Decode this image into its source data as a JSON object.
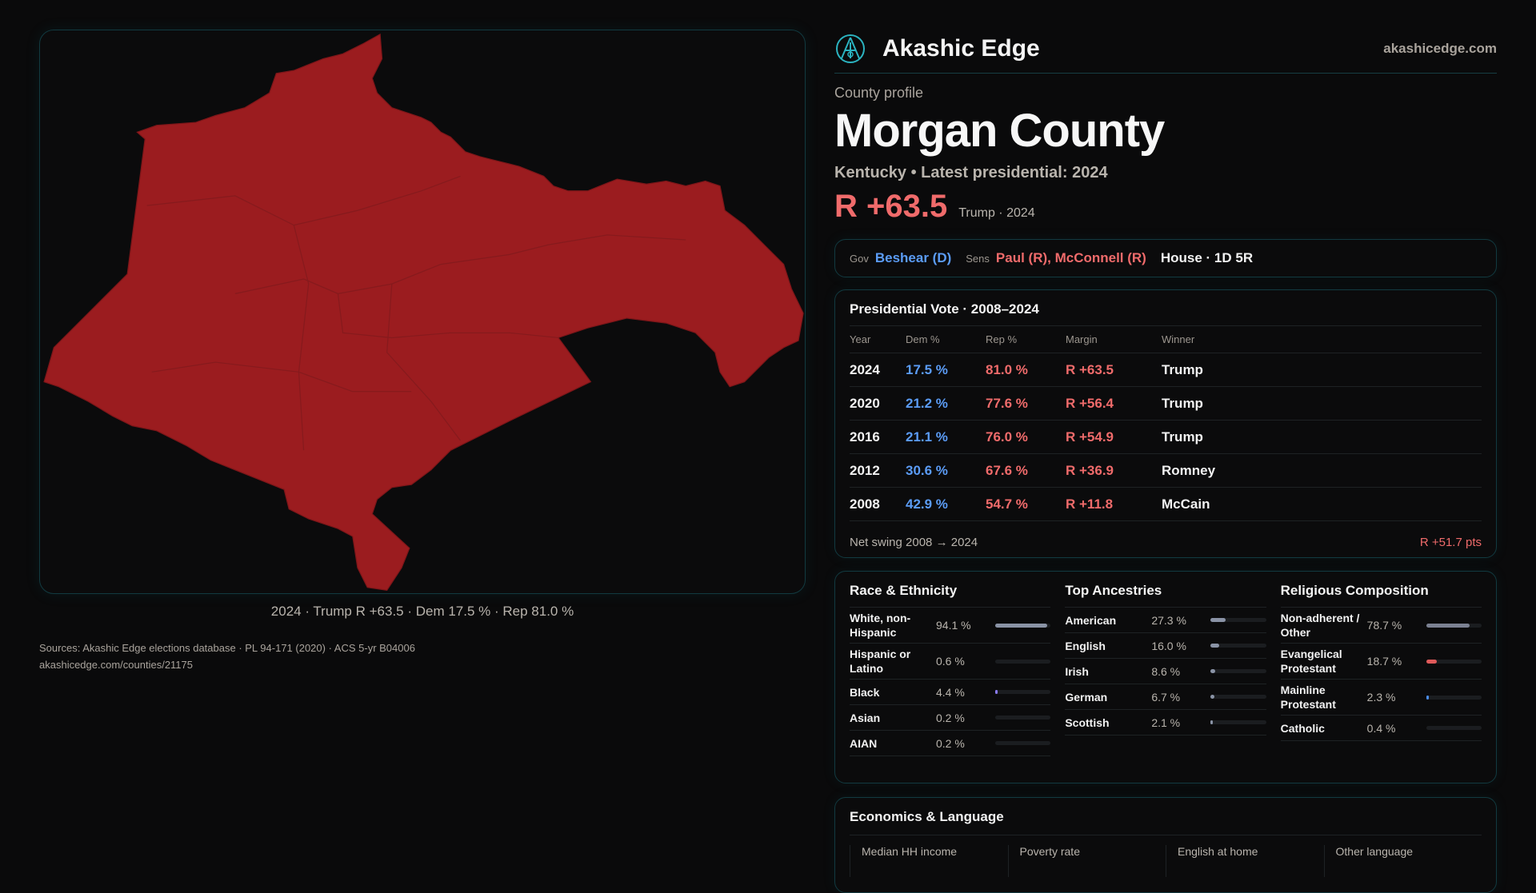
{
  "brand": {
    "name": "Akashic Edge",
    "site": "akashicedge.com"
  },
  "profile": {
    "kicker": "County profile",
    "title": "Morgan County",
    "subtitle": "Kentucky • Latest presidential: 2024",
    "margin": "R +63.5",
    "margin_sub": "Trump · 2024"
  },
  "officials": {
    "gov_label": "Gov",
    "gov": "Beshear (D)",
    "sens_label": "Sens",
    "sens": "Paul (R), McConnell (R)",
    "house": "House · 1D 5R"
  },
  "map": {
    "caption": "2024 · Trump R +63.5 · Dem 17.5 % · Rep 81.0 %",
    "fill": "#9b1c1f"
  },
  "vote": {
    "title": "Presidential Vote · 2008–2024",
    "headers": [
      "Year",
      "Dem %",
      "Rep %",
      "Margin",
      "Winner"
    ],
    "rows": [
      [
        "2024",
        "17.5 %",
        "81.0 %",
        "R +63.5",
        "Trump"
      ],
      [
        "2020",
        "21.2 %",
        "77.6 %",
        "R +56.4",
        "Trump"
      ],
      [
        "2016",
        "21.1 %",
        "76.0 %",
        "R +54.9",
        "Trump"
      ],
      [
        "2012",
        "30.6 %",
        "67.6 %",
        "R +36.9",
        "Romney"
      ],
      [
        "2008",
        "42.9 %",
        "54.7 %",
        "R +11.8",
        "McCain"
      ]
    ],
    "swing_label": "Net swing 2008 → 2024",
    "swing_value": "R +51.7 pts"
  },
  "demographics": [
    {
      "title": "Race & Ethnicity",
      "items": [
        {
          "label": "White, non-Hispanic",
          "value": "94.1 %",
          "pct": 94.1,
          "color": "#8a93a6"
        },
        {
          "label": "Hispanic or Latino",
          "value": "0.6 %",
          "pct": 0.6,
          "color": "#8a93a6"
        },
        {
          "label": "Black",
          "value": "4.4 %",
          "pct": 4.4,
          "color": "#8b7cf6"
        },
        {
          "label": "Asian",
          "value": "0.2 %",
          "pct": 0.2,
          "color": "#8a93a6"
        },
        {
          "label": "AIAN",
          "value": "0.2 %",
          "pct": 0.2,
          "color": "#8a93a6"
        }
      ]
    },
    {
      "title": "Top Ancestries",
      "items": [
        {
          "label": "American",
          "value": "27.3 %",
          "pct": 27.3,
          "color": "#8a93a6"
        },
        {
          "label": "English",
          "value": "16.0 %",
          "pct": 16.0,
          "color": "#8a93a6"
        },
        {
          "label": "Irish",
          "value": "8.6 %",
          "pct": 8.6,
          "color": "#8a93a6"
        },
        {
          "label": "German",
          "value": "6.7 %",
          "pct": 6.7,
          "color": "#8a93a6"
        },
        {
          "label": "Scottish",
          "value": "2.1 %",
          "pct": 2.1,
          "color": "#8a93a6"
        }
      ]
    },
    {
      "title": "Religious Composition",
      "items": [
        {
          "label": "Non-adherent / Other",
          "value": "78.7 %",
          "pct": 78.7,
          "color": "#7b8192"
        },
        {
          "label": "Evangelical Protestant",
          "value": "18.7 %",
          "pct": 18.7,
          "color": "#e05a5a"
        },
        {
          "label": "Mainline Protestant",
          "value": "2.3 %",
          "pct": 2.3,
          "color": "#4a8ef0"
        },
        {
          "label": "Catholic",
          "value": "0.4 %",
          "pct": 0.4,
          "color": "#8a93a6"
        }
      ]
    }
  ],
  "economics": {
    "title": "Economics & Language",
    "headers": [
      "Median HH income",
      "Poverty rate",
      "English at home",
      "Other language"
    ]
  },
  "sources": {
    "line1": "Sources: Akashic Edge elections database · PL 94-171 (2020) · ACS 5-yr B04006",
    "line2": "akashicedge.com/counties/21175"
  }
}
